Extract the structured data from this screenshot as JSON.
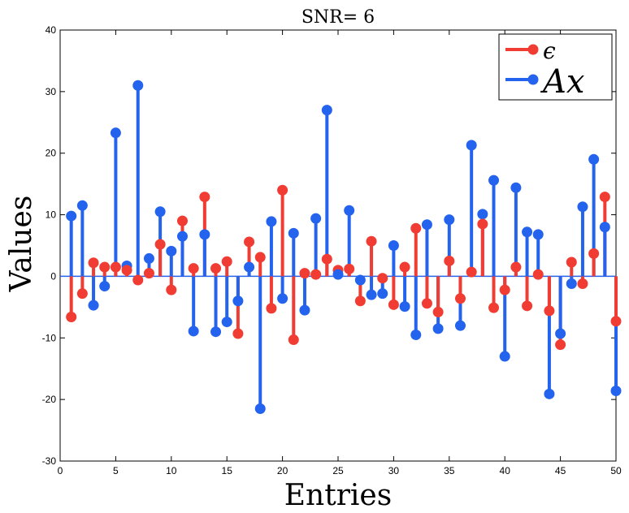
{
  "chart_data": {
    "type": "stem",
    "title": "SNR= 6",
    "xlabel": "Entries",
    "ylabel": "Values",
    "xlim": [
      0,
      50
    ],
    "ylim": [
      -30,
      40
    ],
    "xticks": [
      0,
      5,
      10,
      15,
      20,
      25,
      30,
      35,
      40,
      45,
      50
    ],
    "yticks": [
      -30,
      -20,
      -10,
      0,
      10,
      20,
      30,
      40
    ],
    "legend_position": "top-right",
    "x": [
      1,
      2,
      3,
      4,
      5,
      6,
      7,
      8,
      9,
      10,
      11,
      12,
      13,
      14,
      15,
      16,
      17,
      18,
      19,
      20,
      21,
      22,
      23,
      24,
      25,
      26,
      27,
      28,
      29,
      30,
      31,
      32,
      33,
      34,
      35,
      36,
      37,
      38,
      39,
      40,
      41,
      42,
      43,
      44,
      45,
      46,
      47,
      48,
      49,
      50
    ],
    "series": [
      {
        "name": "ϵ",
        "color": "#f03c32",
        "values": [
          -6.6,
          -2.8,
          2.2,
          1.5,
          1.5,
          1.0,
          -0.6,
          0.5,
          5.2,
          -2.2,
          9.0,
          1.3,
          12.9,
          1.3,
          2.4,
          -9.3,
          5.6,
          3.1,
          -5.2,
          14.0,
          -10.3,
          0.5,
          0.3,
          2.8,
          1.0,
          1.2,
          -4.0,
          5.7,
          -0.3,
          -4.6,
          1.5,
          7.8,
          -4.4,
          -5.8,
          2.5,
          -3.6,
          0.7,
          8.5,
          -5.1,
          -2.2,
          1.5,
          -4.8,
          0.3,
          -5.6,
          -11.1,
          2.3,
          -1.2,
          3.7,
          12.9,
          -7.3
        ]
      },
      {
        "name": "Ax",
        "color": "#2463ee",
        "values": [
          9.8,
          11.5,
          -4.7,
          -1.6,
          23.3,
          1.7,
          31.0,
          2.9,
          10.5,
          4.1,
          6.5,
          -8.9,
          6.8,
          -9.0,
          -7.4,
          -4.0,
          1.5,
          -21.5,
          8.9,
          -3.6,
          7.0,
          -5.5,
          9.4,
          27.0,
          0.3,
          10.7,
          -0.6,
          -3.0,
          -2.8,
          5.0,
          -4.9,
          -9.5,
          8.4,
          -8.5,
          9.2,
          -8.0,
          21.3,
          10.1,
          15.6,
          -13.0,
          14.4,
          7.2,
          6.8,
          -19.1,
          -9.3,
          -1.2,
          11.3,
          19.0,
          8.0,
          -18.6
        ]
      }
    ]
  }
}
